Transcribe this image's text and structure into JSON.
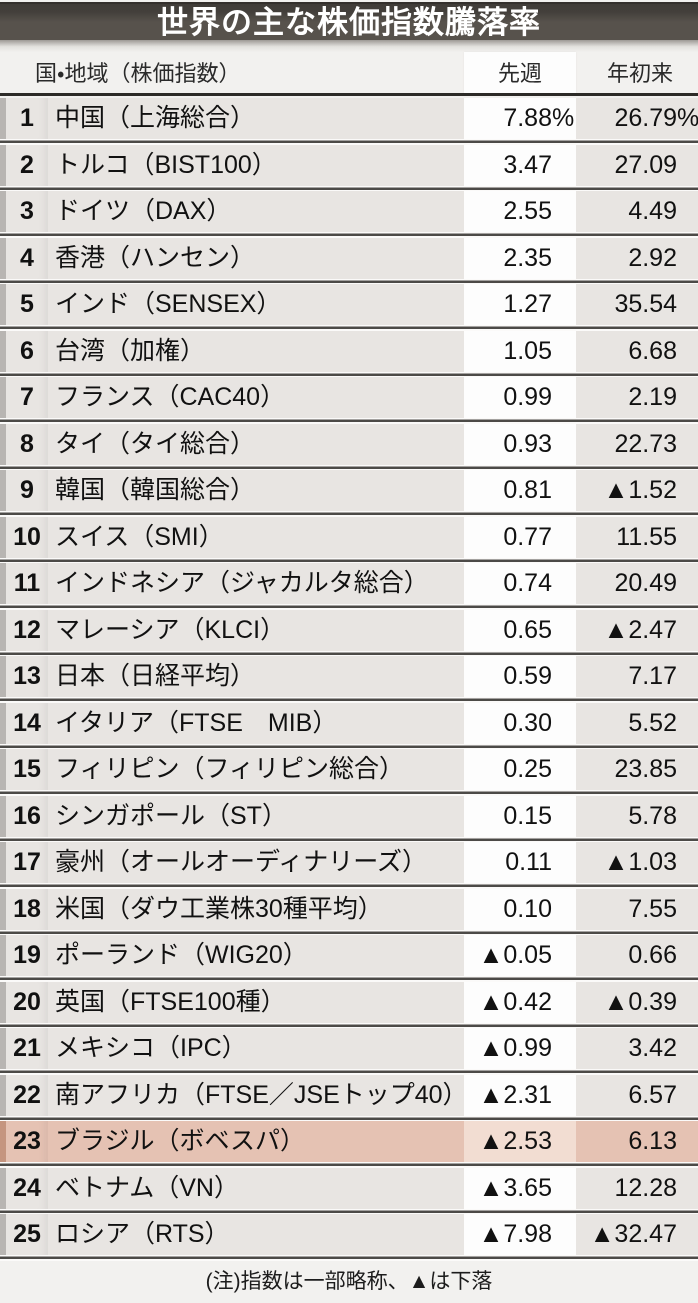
{
  "chart_data": {
    "type": "table",
    "title": "世界の主な株価指数騰落率",
    "columns": [
      "国・地域（株価指数）",
      "先週",
      "年初来"
    ],
    "unit": "%",
    "note": "(注)指数は一部略称、▲は下落",
    "rows": [
      {
        "rank": 1,
        "name": "中国（上海総合）",
        "week": "7.88%",
        "ytd": "26.79%",
        "highlight": false
      },
      {
        "rank": 2,
        "name": "トルコ（BIST100）",
        "week": "3.47",
        "ytd": "27.09",
        "highlight": false
      },
      {
        "rank": 3,
        "name": "ドイツ（DAX）",
        "week": "2.55",
        "ytd": "4.49",
        "highlight": false
      },
      {
        "rank": 4,
        "name": "香港（ハンセン）",
        "week": "2.35",
        "ytd": "2.92",
        "highlight": false
      },
      {
        "rank": 5,
        "name": "インド（SENSEX）",
        "week": "1.27",
        "ytd": "35.54",
        "highlight": false
      },
      {
        "rank": 6,
        "name": "台湾（加権）",
        "week": "1.05",
        "ytd": "6.68",
        "highlight": false
      },
      {
        "rank": 7,
        "name": "フランス（CAC40）",
        "week": "0.99",
        "ytd": "2.19",
        "highlight": false
      },
      {
        "rank": 8,
        "name": "タイ（タイ総合）",
        "week": "0.93",
        "ytd": "22.73",
        "highlight": false
      },
      {
        "rank": 9,
        "name": "韓国（韓国総合）",
        "week": "0.81",
        "ytd": "▲1.52",
        "highlight": false
      },
      {
        "rank": 10,
        "name": "スイス（SMI）",
        "week": "0.77",
        "ytd": "11.55",
        "highlight": false
      },
      {
        "rank": 11,
        "name": "インドネシア（ジャカルタ総合）",
        "week": "0.74",
        "ytd": "20.49",
        "highlight": false
      },
      {
        "rank": 12,
        "name": "マレーシア（KLCI）",
        "week": "0.65",
        "ytd": "▲2.47",
        "highlight": false
      },
      {
        "rank": 13,
        "name": "日本（日経平均）",
        "week": "0.59",
        "ytd": "7.17",
        "highlight": false
      },
      {
        "rank": 14,
        "name": "イタリア（FTSE　MIB）",
        "week": "0.30",
        "ytd": "5.52",
        "highlight": false
      },
      {
        "rank": 15,
        "name": "フィリピン（フィリピン総合）",
        "week": "0.25",
        "ytd": "23.85",
        "highlight": false
      },
      {
        "rank": 16,
        "name": "シンガポール（ST）",
        "week": "0.15",
        "ytd": "5.78",
        "highlight": false
      },
      {
        "rank": 17,
        "name": "豪州（オールオーディナリーズ）",
        "week": "0.11",
        "ytd": "▲1.03",
        "highlight": false
      },
      {
        "rank": 18,
        "name": "米国（ダウ工業株30種平均）",
        "week": "0.10",
        "ytd": "7.55",
        "highlight": false
      },
      {
        "rank": 19,
        "name": "ポーランド（WIG20）",
        "week": "▲0.05",
        "ytd": "0.66",
        "highlight": false
      },
      {
        "rank": 20,
        "name": "英国（FTSE100種）",
        "week": "▲0.42",
        "ytd": "▲0.39",
        "highlight": false
      },
      {
        "rank": 21,
        "name": "メキシコ（IPC）",
        "week": "▲0.99",
        "ytd": "3.42",
        "highlight": false
      },
      {
        "rank": 22,
        "name": "南アフリカ（FTSE／JSEトップ40）",
        "week": "▲2.31",
        "ytd": "6.57",
        "highlight": false
      },
      {
        "rank": 23,
        "name": "ブラジル（ボベスパ）",
        "week": "▲2.53",
        "ytd": "6.13",
        "highlight": true
      },
      {
        "rank": 24,
        "name": "ベトナム（VN）",
        "week": "▲3.65",
        "ytd": "12.28",
        "highlight": false
      },
      {
        "rank": 25,
        "name": "ロシア（RTS）",
        "week": "▲7.98",
        "ytd": "▲32.47",
        "highlight": false
      }
    ]
  },
  "header": {
    "name_label": "国・地域（株価指数）",
    "week_label": "先週",
    "ytd_label": "年初来"
  },
  "colors": {
    "title_bar": "#57524c",
    "title_text": "#ffffff",
    "row_bg": "#e8e5e2",
    "week_band": "#fdfdfd",
    "highlight_row": "#e5c2b3",
    "highlight_week_band": "#f2ddd2",
    "separator_line": "#4c4a47",
    "header_line": "#2d2b28"
  }
}
